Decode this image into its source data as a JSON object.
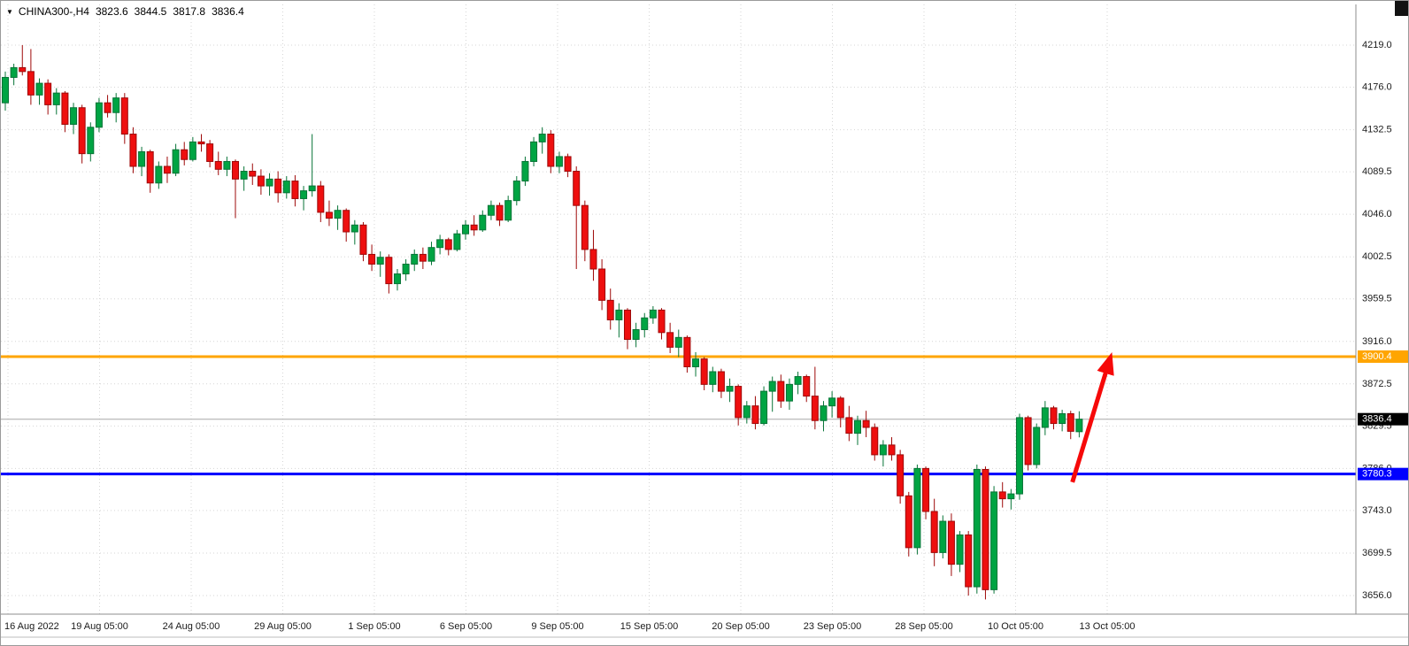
{
  "header": {
    "dropdown_icon": "▼",
    "symbol_timeframe": "CHINA300-,H4",
    "open": "3823.6",
    "high": "3844.5",
    "low": "3817.8",
    "close": "3836.4"
  },
  "colors": {
    "background": "#FFFFFF",
    "grid": "#D6D6D6",
    "axis_text": "#1b1b1b",
    "axis_line": "#8c8c8c",
    "up_fill": "#00A443",
    "up_stroke": "#077437",
    "down_fill": "#EE0F0F",
    "down_stroke": "#9E0909",
    "current_line": "#A8A8A8",
    "badge_text": "#FFFFFF"
  },
  "chart_data": {
    "type": "candlestick",
    "symbol": "CHINA300-",
    "timeframe": "H4",
    "title": "CHINA300-,H4 3823.6 3844.5 3817.8 3836.4",
    "ohlc_display": {
      "open": 3823.6,
      "high": 3844.5,
      "low": 3817.8,
      "close": 3836.4
    },
    "ylim": [
      3656.0,
      4219.0
    ],
    "grid": true,
    "y_ticks": [
      "4219.0",
      "4176.0",
      "4132.5",
      "4089.5",
      "4046.0",
      "4002.5",
      "3959.5",
      "3916.0",
      "3872.5",
      "3829.5",
      "3786.0",
      "3743.0",
      "3699.5",
      "3656.0"
    ],
    "x_labels": [
      "16 Aug 2022",
      "19 Aug 05:00",
      "24 Aug 05:00",
      "29 Aug 05:00",
      "1 Sep 05:00",
      "6 Sep 05:00",
      "9 Sep 05:00",
      "15 Sep 05:00",
      "20 Sep 05:00",
      "23 Sep 05:00",
      "28 Sep 05:00",
      "10 Oct 05:00",
      "13 Oct 05:00"
    ],
    "price_lines": [
      {
        "name": "resistance-line",
        "label": "3900.4",
        "value": 3900.4,
        "color": "#FFA500",
        "thickness": 3,
        "badge_bg": "#FFA500"
      },
      {
        "name": "current-price-line",
        "label": "3836.4",
        "value": 3836.4,
        "color": "#A8A8A8",
        "thickness": 1,
        "badge_bg": "#000000"
      },
      {
        "name": "support-line",
        "label": "3780.3",
        "value": 3780.3,
        "color": "#0000FE",
        "thickness": 3,
        "badge_bg": "#0000FE"
      }
    ],
    "annotation_arrow": {
      "from_bar": 125.2,
      "from_price": 3772,
      "to_bar": 129.6,
      "to_price": 3898,
      "color": "#F60909"
    },
    "candles": [
      [
        4160,
        4192,
        4152,
        4186
      ],
      [
        4186,
        4200,
        4178,
        4196
      ],
      [
        4196,
        4219,
        4188,
        4192
      ],
      [
        4192,
        4215,
        4158,
        4168
      ],
      [
        4168,
        4185,
        4158,
        4180
      ],
      [
        4180,
        4184,
        4148,
        4158
      ],
      [
        4158,
        4175,
        4148,
        4170
      ],
      [
        4170,
        4172,
        4130,
        4138
      ],
      [
        4138,
        4160,
        4128,
        4155
      ],
      [
        4155,
        4158,
        4098,
        4108
      ],
      [
        4108,
        4140,
        4100,
        4135
      ],
      [
        4135,
        4165,
        4130,
        4160
      ],
      [
        4160,
        4168,
        4145,
        4150
      ],
      [
        4150,
        4170,
        4140,
        4165
      ],
      [
        4165,
        4170,
        4118,
        4128
      ],
      [
        4128,
        4135,
        4088,
        4095
      ],
      [
        4095,
        4115,
        4085,
        4110
      ],
      [
        4110,
        4112,
        4068,
        4078
      ],
      [
        4078,
        4100,
        4072,
        4095
      ],
      [
        4095,
        4105,
        4078,
        4088
      ],
      [
        4088,
        4118,
        4085,
        4112
      ],
      [
        4112,
        4120,
        4096,
        4102
      ],
      [
        4102,
        4125,
        4100,
        4120
      ],
      [
        4120,
        4128,
        4110,
        4118
      ],
      [
        4118,
        4122,
        4094,
        4100
      ],
      [
        4100,
        4110,
        4086,
        4092
      ],
      [
        4092,
        4105,
        4085,
        4100
      ],
      [
        4100,
        4102,
        4042,
        4082
      ],
      [
        4082,
        4095,
        4070,
        4090
      ],
      [
        4090,
        4098,
        4076,
        4085
      ],
      [
        4085,
        4092,
        4066,
        4075
      ],
      [
        4075,
        4088,
        4065,
        4082
      ],
      [
        4082,
        4090,
        4058,
        4068
      ],
      [
        4068,
        4085,
        4062,
        4080
      ],
      [
        4080,
        4086,
        4054,
        4062
      ],
      [
        4062,
        4075,
        4050,
        4070
      ],
      [
        4070,
        4128,
        4064,
        4075
      ],
      [
        4075,
        4080,
        4038,
        4048
      ],
      [
        4048,
        4060,
        4034,
        4042
      ],
      [
        4042,
        4055,
        4030,
        4050
      ],
      [
        4050,
        4052,
        4018,
        4028
      ],
      [
        4028,
        4040,
        4015,
        4035
      ],
      [
        4035,
        4038,
        3998,
        4005
      ],
      [
        4005,
        4015,
        3988,
        3995
      ],
      [
        3995,
        4008,
        3982,
        4002
      ],
      [
        4002,
        4005,
        3965,
        3975
      ],
      [
        3975,
        3990,
        3968,
        3985
      ],
      [
        3985,
        4000,
        3978,
        3995
      ],
      [
        3995,
        4010,
        3988,
        4005
      ],
      [
        4005,
        4012,
        3990,
        3998
      ],
      [
        3998,
        4018,
        3994,
        4012
      ],
      [
        4012,
        4025,
        4005,
        4020
      ],
      [
        4020,
        4022,
        4004,
        4010
      ],
      [
        4010,
        4030,
        4008,
        4026
      ],
      [
        4026,
        4040,
        4020,
        4035
      ],
      [
        4035,
        4045,
        4024,
        4030
      ],
      [
        4030,
        4050,
        4028,
        4045
      ],
      [
        4045,
        4060,
        4040,
        4055
      ],
      [
        4055,
        4058,
        4034,
        4040
      ],
      [
        4040,
        4065,
        4038,
        4060
      ],
      [
        4060,
        4085,
        4055,
        4080
      ],
      [
        4080,
        4105,
        4075,
        4100
      ],
      [
        4100,
        4125,
        4095,
        4120
      ],
      [
        4120,
        4135,
        4108,
        4128
      ],
      [
        4128,
        4132,
        4088,
        4095
      ],
      [
        4095,
        4110,
        4088,
        4105
      ],
      [
        4105,
        4108,
        4084,
        4090
      ],
      [
        4090,
        4095,
        3990,
        4055
      ],
      [
        4055,
        4060,
        3998,
        4010
      ],
      [
        4010,
        4030,
        3978,
        3990
      ],
      [
        3990,
        4000,
        3948,
        3958
      ],
      [
        3958,
        3970,
        3928,
        3938
      ],
      [
        3938,
        3955,
        3920,
        3948
      ],
      [
        3948,
        3950,
        3908,
        3918
      ],
      [
        3918,
        3935,
        3910,
        3928
      ],
      [
        3928,
        3945,
        3920,
        3940
      ],
      [
        3940,
        3952,
        3934,
        3948
      ],
      [
        3948,
        3950,
        3918,
        3925
      ],
      [
        3925,
        3935,
        3904,
        3910
      ],
      [
        3910,
        3928,
        3900,
        3920
      ],
      [
        3920,
        3922,
        3884,
        3890
      ],
      [
        3890,
        3905,
        3880,
        3898
      ],
      [
        3898,
        3900,
        3866,
        3872
      ],
      [
        3872,
        3890,
        3864,
        3885
      ],
      [
        3885,
        3888,
        3858,
        3865
      ],
      [
        3865,
        3878,
        3854,
        3870
      ],
      [
        3870,
        3872,
        3830,
        3838
      ],
      [
        3838,
        3855,
        3832,
        3850
      ],
      [
        3850,
        3860,
        3826,
        3832
      ],
      [
        3832,
        3870,
        3830,
        3865
      ],
      [
        3865,
        3880,
        3844,
        3875
      ],
      [
        3875,
        3882,
        3848,
        3855
      ],
      [
        3855,
        3878,
        3846,
        3872
      ],
      [
        3872,
        3885,
        3862,
        3880
      ],
      [
        3880,
        3882,
        3854,
        3860
      ],
      [
        3860,
        3890,
        3826,
        3835
      ],
      [
        3835,
        3855,
        3824,
        3850
      ],
      [
        3850,
        3865,
        3838,
        3858
      ],
      [
        3858,
        3860,
        3828,
        3838
      ],
      [
        3838,
        3850,
        3814,
        3822
      ],
      [
        3822,
        3840,
        3810,
        3835
      ],
      [
        3835,
        3845,
        3818,
        3828
      ],
      [
        3828,
        3832,
        3794,
        3800
      ],
      [
        3800,
        3815,
        3788,
        3810
      ],
      [
        3810,
        3818,
        3794,
        3800
      ],
      [
        3800,
        3805,
        3750,
        3758
      ],
      [
        3758,
        3762,
        3696,
        3705
      ],
      [
        3705,
        3790,
        3698,
        3786
      ],
      [
        3786,
        3788,
        3734,
        3742
      ],
      [
        3742,
        3755,
        3686,
        3700
      ],
      [
        3700,
        3738,
        3694,
        3732
      ],
      [
        3732,
        3740,
        3676,
        3688
      ],
      [
        3688,
        3722,
        3680,
        3718
      ],
      [
        3718,
        3722,
        3656,
        3665
      ],
      [
        3665,
        3790,
        3658,
        3785
      ],
      [
        3785,
        3788,
        3652,
        3662
      ],
      [
        3662,
        3768,
        3658,
        3762
      ],
      [
        3762,
        3772,
        3746,
        3755
      ],
      [
        3755,
        3765,
        3744,
        3760
      ],
      [
        3760,
        3842,
        3754,
        3838
      ],
      [
        3838,
        3840,
        3784,
        3790
      ],
      [
        3790,
        3832,
        3786,
        3828
      ],
      [
        3828,
        3855,
        3820,
        3848
      ],
      [
        3848,
        3850,
        3826,
        3832
      ],
      [
        3832,
        3846,
        3824,
        3842
      ],
      [
        3842,
        3845,
        3816,
        3824
      ],
      [
        3823.6,
        3844.5,
        3817.8,
        3836.4
      ]
    ]
  }
}
